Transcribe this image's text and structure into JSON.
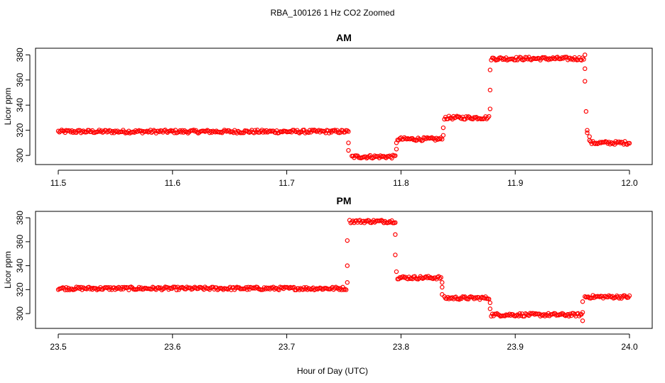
{
  "title": "RBA_100126  1 Hz CO2 Zoomed",
  "xlabel": "Hour of Day (UTC)",
  "colors": {
    "points": "#ff0000",
    "axis": "#000000"
  },
  "chart_data": [
    {
      "type": "scatter",
      "title": "AM",
      "ylabel": "Licor ppm",
      "xlim": [
        11.5,
        12.0
      ],
      "ylim": [
        295,
        383
      ],
      "x_ticks": [
        "11.5",
        "11.6",
        "11.7",
        "11.8",
        "11.9",
        "12.0"
      ],
      "x_tick_values": [
        11.5,
        11.6,
        11.7,
        11.8,
        11.9,
        12.0
      ],
      "y_ticks": [
        "300",
        "320",
        "340",
        "360",
        "380"
      ],
      "y_tick_values": [
        300,
        320,
        340,
        360,
        380
      ],
      "segments": [
        {
          "x": [
            11.5,
            11.753
          ],
          "y": 319
        },
        {
          "x": [
            11.757,
            11.795
          ],
          "y": 299
        },
        {
          "x": [
            11.797,
            11.836
          ],
          "y": 313
        },
        {
          "x": [
            11.838,
            11.877
          ],
          "y": 330
        },
        {
          "x": [
            11.879,
            11.96
          ],
          "y": 377
        },
        {
          "x": [
            11.966,
            12.0
          ],
          "y": 310
        }
      ],
      "transitions": [
        {
          "x": 11.754,
          "y": [
            319,
            310,
            304
          ]
        },
        {
          "x": 11.796,
          "y": [
            305,
            310
          ]
        },
        {
          "x": 11.837,
          "y": [
            316,
            322
          ]
        },
        {
          "x": 11.878,
          "y": [
            337,
            352,
            368
          ]
        },
        {
          "x": 11.961,
          "y": [
            380,
            369,
            359
          ]
        },
        {
          "x": 11.962,
          "y": [
            335
          ]
        },
        {
          "x": 11.963,
          "y": [
            320,
            318
          ]
        },
        {
          "x": 11.965,
          "y": [
            315,
            312
          ]
        }
      ]
    },
    {
      "type": "scatter",
      "title": "PM",
      "ylabel": "Licor ppm",
      "xlim": [
        23.5,
        24.0
      ],
      "ylim": [
        290,
        383
      ],
      "x_ticks": [
        "23.5",
        "23.6",
        "23.7",
        "23.8",
        "23.9",
        "24.0"
      ],
      "x_tick_values": [
        23.5,
        23.6,
        23.7,
        23.8,
        23.9,
        24.0
      ],
      "y_ticks": [
        "300",
        "320",
        "340",
        "360",
        "380"
      ],
      "y_tick_values": [
        300,
        320,
        340,
        360,
        380
      ],
      "segments": [
        {
          "x": [
            23.5,
            23.752
          ],
          "y": 321
        },
        {
          "x": [
            23.755,
            23.794
          ],
          "y": 377
        },
        {
          "x": [
            23.797,
            23.835
          ],
          "y": 330
        },
        {
          "x": [
            23.838,
            23.877
          ],
          "y": 313
        },
        {
          "x": [
            23.879,
            23.958
          ],
          "y": 299
        },
        {
          "x": [
            23.961,
            24.0
          ],
          "y": 314
        }
      ],
      "transitions": [
        {
          "x": 23.753,
          "y": [
            326,
            340,
            361
          ]
        },
        {
          "x": 23.795,
          "y": [
            376,
            366,
            349
          ]
        },
        {
          "x": 23.796,
          "y": [
            335
          ]
        },
        {
          "x": 23.836,
          "y": [
            326,
            322,
            316
          ]
        },
        {
          "x": 23.878,
          "y": [
            309,
            304
          ]
        },
        {
          "x": 23.959,
          "y": [
            294,
            301,
            310
          ]
        }
      ]
    }
  ]
}
